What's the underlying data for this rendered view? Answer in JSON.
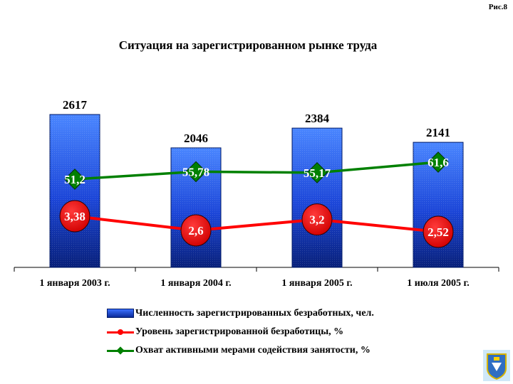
{
  "figure_label": "Рис.8",
  "chart_data": {
    "type": "bar",
    "title": "Ситуация на зарегистрированном рынке труда",
    "categories": [
      "1 января 2003 г.",
      "1 января 2004 г.",
      "1 января 2005 г.",
      "1 июля 2005 г."
    ],
    "series": [
      {
        "name": "Численность зарегистрированных безработных, чел.",
        "type": "bar",
        "values": [
          2617,
          2046,
          2384,
          2141
        ],
        "labels": [
          "2617",
          "2046",
          "2384",
          "2141"
        ],
        "color": "#1c46d8"
      },
      {
        "name": "Уровень зарегистрированной безработицы, %",
        "type": "line",
        "values": [
          3.38,
          2.6,
          3.2,
          2.52
        ],
        "labels": [
          "3,38",
          "2,6",
          "3,2",
          "2,52"
        ],
        "color": "#ff0000"
      },
      {
        "name": "Охват активными мерами содействия занятости, %",
        "type": "line",
        "values": [
          51.2,
          55.78,
          55.17,
          61.6
        ],
        "labels": [
          "51,2",
          "55,78",
          "55,17",
          "61,6"
        ],
        "color": "#008000"
      }
    ],
    "legend_position": "bottom",
    "grid": false
  }
}
